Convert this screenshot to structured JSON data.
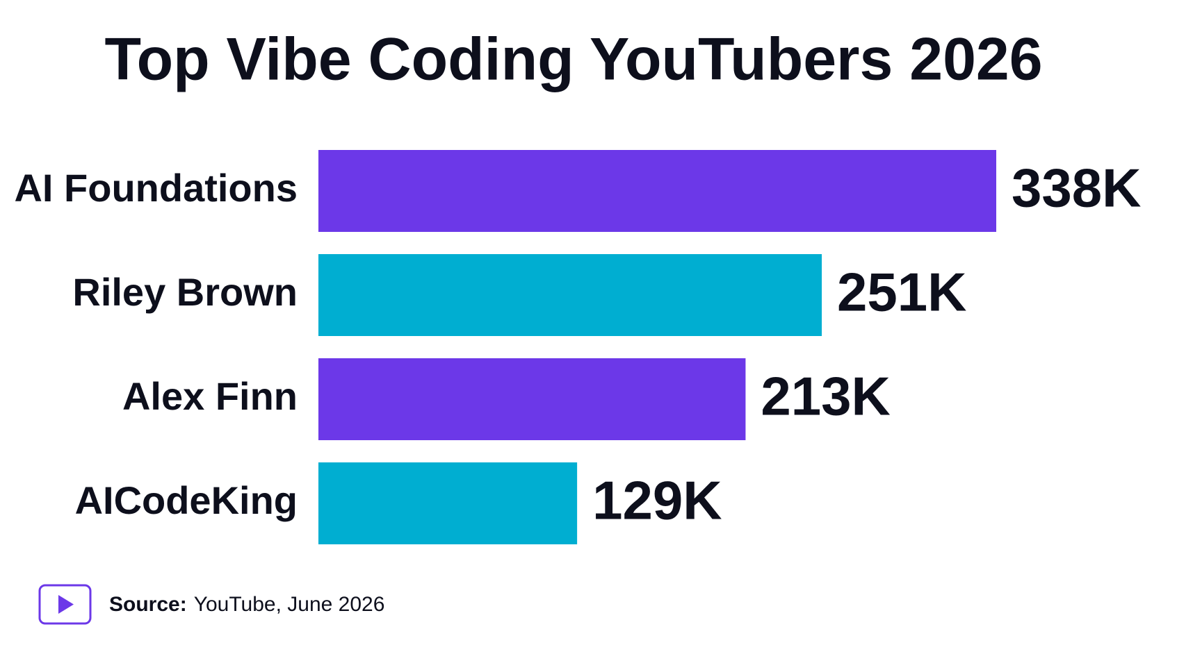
{
  "chart_data": {
    "type": "bar",
    "orientation": "horizontal",
    "title": "Top Vibe Coding YouTubers 2026",
    "categories": [
      "AI Foundations",
      "Riley Brown",
      "Alex Finn",
      "AICodeKing"
    ],
    "values": [
      338000,
      251000,
      213000,
      129000
    ],
    "value_labels": [
      "338K",
      "251K",
      "213K",
      "129K"
    ],
    "colors": [
      "#6c38e8",
      "#00aed1",
      "#6c38e8",
      "#00aed1"
    ],
    "source": {
      "label": "Source:",
      "text": "YouTube, June 2026"
    }
  }
}
